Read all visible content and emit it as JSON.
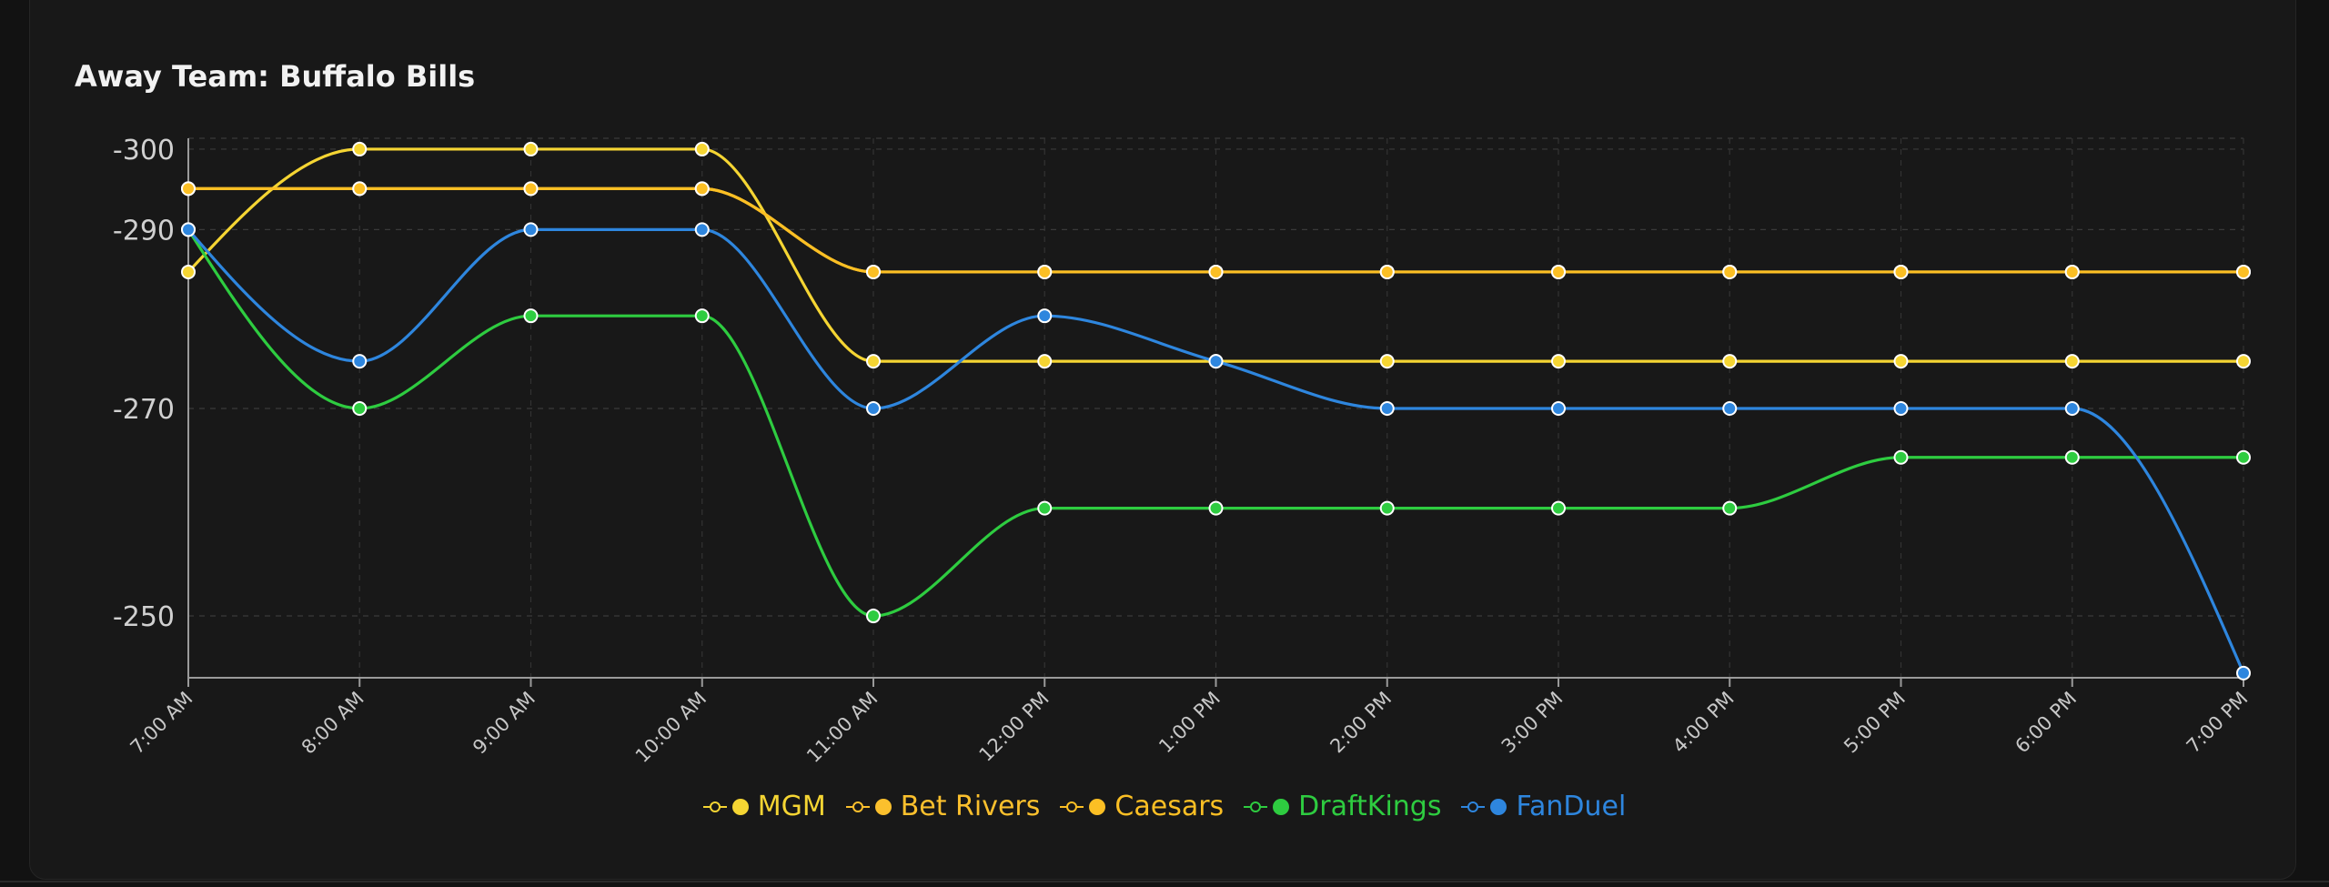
{
  "title": "Away Team: Buffalo Bills",
  "chart_data": {
    "type": "line",
    "title": "Away Team: Buffalo Bills",
    "xlabel": "",
    "ylabel": "",
    "x": [
      "7:00 AM",
      "8:00 AM",
      "9:00 AM",
      "10:00 AM",
      "11:00 AM",
      "12:00 PM",
      "1:00 PM",
      "2:00 PM",
      "3:00 PM",
      "4:00 PM",
      "5:00 PM",
      "6:00 PM",
      "7:00 PM"
    ],
    "yticks": [
      -300,
      -290,
      -270,
      -250
    ],
    "ytick_labels": [
      "-300",
      "-290",
      "-270",
      "-250"
    ],
    "ylim": [
      -301.4,
      -244.6
    ],
    "y_scale": "reciprocal",
    "grid": true,
    "legend_position": "bottom",
    "series": [
      {
        "name": "MGM",
        "color": "#f5d533",
        "values": [
          -285,
          -300,
          -300,
          -300,
          -275,
          -275,
          -275,
          -275,
          -275,
          -275,
          -275,
          -275,
          -275
        ]
      },
      {
        "name": "Bet Rivers",
        "color": "#fbc02d",
        "values": [
          -295,
          -295,
          -295,
          -295,
          -285,
          -285,
          -285,
          -285,
          -285,
          -285,
          -285,
          -285,
          -285
        ]
      },
      {
        "name": "Caesars",
        "color": "#fbbf24",
        "values": [
          -295,
          -295,
          -295,
          -295,
          -285,
          -285,
          -285,
          -285,
          -285,
          -285,
          -285,
          -285,
          -285
        ]
      },
      {
        "name": "DraftKings",
        "color": "#2ecc40",
        "values": [
          -290,
          -270,
          -280,
          -280,
          -250,
          -260,
          -260,
          -260,
          -260,
          -260,
          -265,
          -265,
          -265
        ]
      },
      {
        "name": "FanDuel",
        "color": "#2e86de",
        "values": [
          -290,
          -275,
          -290,
          -290,
          -270,
          -280,
          -275,
          -270,
          -270,
          -270,
          -270,
          -270,
          -245
        ]
      }
    ]
  }
}
